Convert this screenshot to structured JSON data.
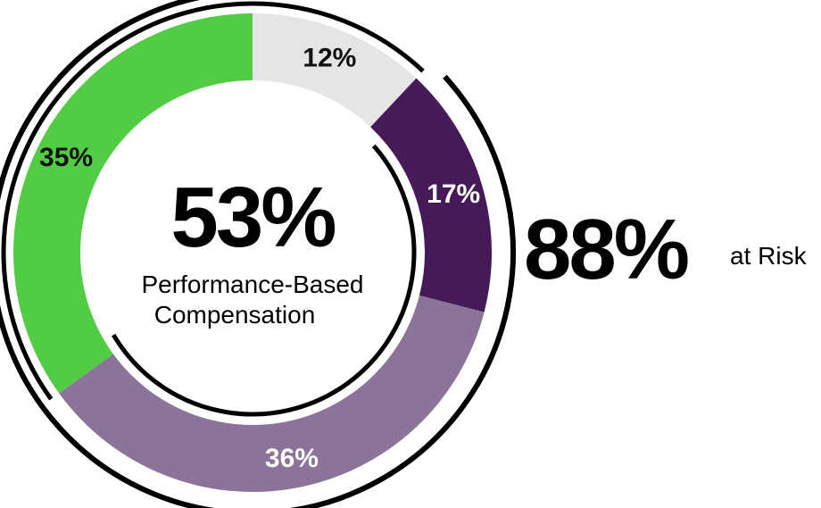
{
  "chart_data": {
    "type": "pie",
    "variant": "donut",
    "start_angle_deg": 0,
    "direction": "clockwise",
    "slices": [
      {
        "label": "12%",
        "value": 12,
        "color": "#e5e5e5",
        "label_color": "#111111"
      },
      {
        "label": "17%",
        "value": 17,
        "color": "#461a58",
        "label_color": "#ffffff"
      },
      {
        "label": "36%",
        "value": 36,
        "color": "#8b7399",
        "label_color": "#ffffff"
      },
      {
        "label": "35%",
        "value": 35,
        "color": "#52cc45",
        "label_color": "#111111"
      }
    ],
    "center": {
      "value": "53%",
      "caption_line1": "Performance-Based",
      "caption_line2": "Compensation"
    },
    "at_risk": {
      "value": "88%",
      "caption": "at Risk"
    },
    "brackets": [
      {
        "name": "outer-bracket-at-risk",
        "covers": "88%",
        "from_pct": 12,
        "to_pct": 100
      },
      {
        "name": "inner-bracket-performance",
        "covers": "53%",
        "from_pct": 12,
        "to_pct": 65
      }
    ]
  }
}
